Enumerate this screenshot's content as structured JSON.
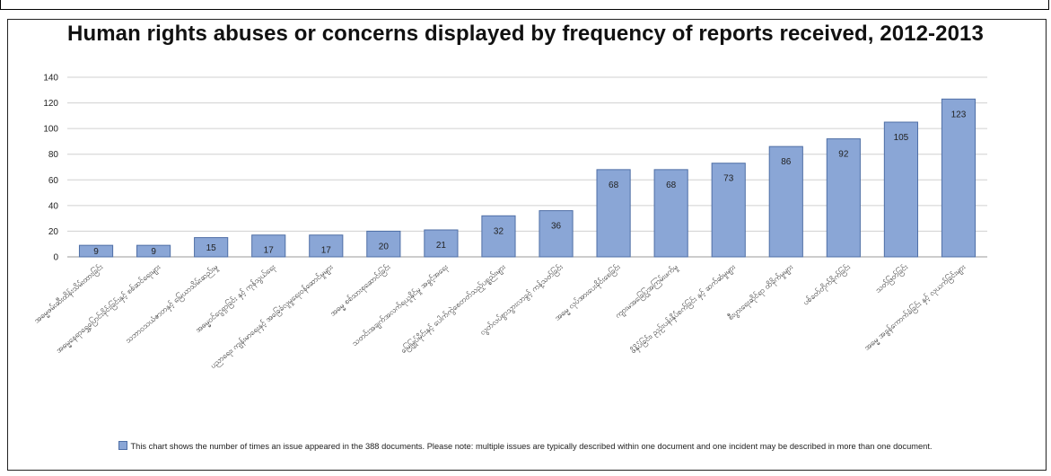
{
  "chart_data": {
    "type": "bar",
    "title": "Human rights abuses or concerns displayed by frequency of reports received, 2012-2013",
    "ylim": [
      0,
      140
    ],
    "yticks": [
      0,
      20,
      40,
      60,
      80,
      100,
      120,
      140
    ],
    "grid": true,
    "legend": "bottom",
    "categories": [
      "အဓမ္မဖမ်းဆီးထိန်းသိမ်းထားခြင်း",
      "အဓမ္မနေရာရွှေ့ပြောင်းခိုင်းခြင်းနှင့် စစ်ဆင်ရေးများ",
      "သဘာဝသယံဇာတနှင့် မြေယာသိမ်းဆည်းမှု",
      "အဓမ္မဝင်ငွေရှာခြင်း နှင့် ကုန်သွယ်ရေး",
      "ပညာရေး၊ ကျန်းမာရေးနှင့် အခြေခံလူမှုရေးဝန်ဆောင်မှုများ",
      "အဓမ္မ စစ်သားစုဆောင်းခြင်း",
      "သတင်းအချက်အလက်ရယူနိုင်မှု အခွင့်အရေး",
      "မြေမြှုပ်မိုင်းနှင့် ပေါက်ကွဲစေတတ်သည့်ပစ္စည်းများ",
      "လွတ်လပ်စွာသွားလာခွင့် ကန့်သတ်ခြင်း",
      "အဓမ္မ လုပ်အားပေးခိုင်းစေခြင်း",
      "ကျားမအခြေပြုအကြမ်းဖက်မှု",
      "ဖိနှိပ်ခြင်း၊ ညှဉ်းပန်းနှိပ်စက်ခြင်း နှင့် ဆက်ဆံမှုများ",
      "စီးပွားရေးဆိုင်ရာ ထိခိုက်မှုများ",
      "ပစ်ခတ်တိုက်ခိုက်ခြင်း",
      "သတ်ဖြတ်ခြင်း",
      "အဓမ္မ အခွန်ကောက်ခံခြင်း နှင့် လုယက်ခြင်းများ"
    ],
    "values": [
      9,
      9,
      15,
      17,
      17,
      20,
      21,
      32,
      36,
      68,
      68,
      73,
      86,
      92,
      105,
      123
    ],
    "data_labels": [
      "9",
      "9",
      "15",
      "17",
      "17",
      "20",
      "21",
      "32",
      "36",
      "68",
      "68",
      "73",
      "86",
      "92",
      "105",
      "123"
    ],
    "bar_color": "#8aa6d6",
    "bar_edge_color": "#4f6fa6"
  },
  "footnote": "This chart shows the number of times an issue appeared in the 388 documents. Please note: multiple issues are typically described within one document and one incident may be described in more than one document."
}
